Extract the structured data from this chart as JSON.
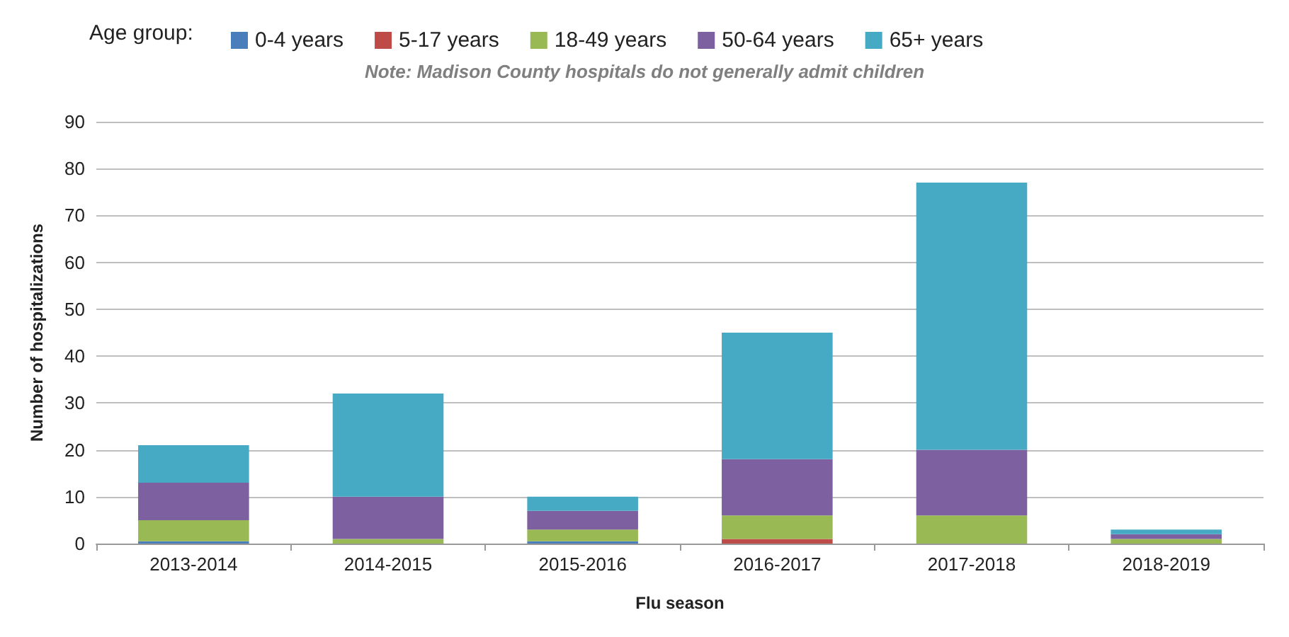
{
  "chart_data": {
    "type": "bar",
    "stacked": true,
    "xlabel": "Flu season",
    "ylabel": "Number of hospitalizations",
    "legend_title": "Age group:",
    "legend": "top",
    "grid": "y",
    "annotations": [
      "Note: Madison County hospitals do not generally admit children"
    ],
    "categories": [
      "2013-2014",
      "2014-2015",
      "2015-2016",
      "2016-2017",
      "2017-2018",
      "2018-2019"
    ],
    "ylim": [
      0,
      90
    ],
    "yticks": [
      0,
      10,
      20,
      30,
      40,
      50,
      60,
      70,
      80,
      90
    ],
    "series": [
      {
        "name": "0-4 years",
        "color": "#4a7ebb",
        "values": [
          0.5,
          0,
          0.5,
          0,
          0,
          0
        ]
      },
      {
        "name": "5-17 years",
        "color": "#be4b48",
        "values": [
          0,
          0,
          0,
          1,
          0,
          0
        ]
      },
      {
        "name": "18-49 years",
        "color": "#98b954",
        "values": [
          4.5,
          1,
          2.5,
          5,
          6,
          1
        ]
      },
      {
        "name": "50-64 years",
        "color": "#7d60a0",
        "values": [
          8,
          9,
          4,
          12,
          14,
          1
        ]
      },
      {
        "name": "65+ years",
        "color": "#46aac5",
        "values": [
          8,
          22,
          3,
          27,
          57,
          1
        ]
      }
    ]
  }
}
